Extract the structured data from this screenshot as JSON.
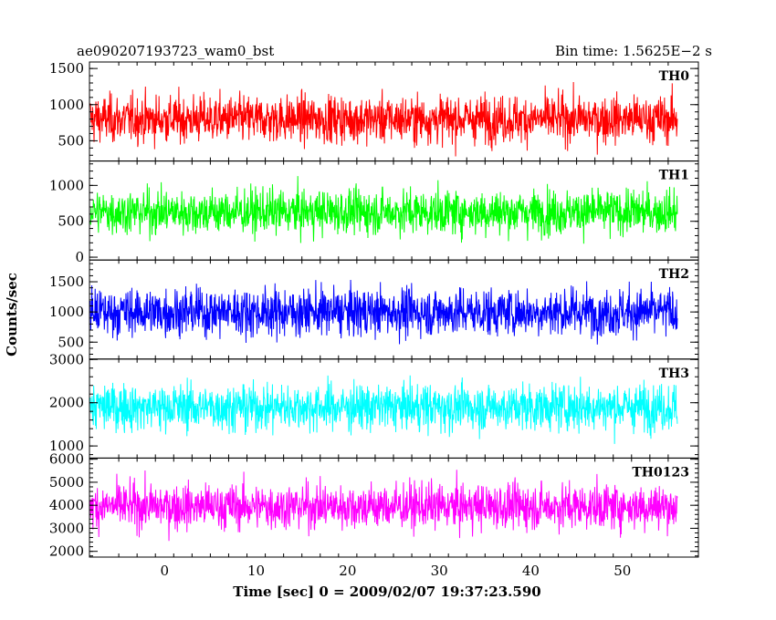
{
  "chart_data": {
    "type": "line",
    "title_left": "ae090207193723_wam0_bst",
    "title_right": "Bin time: 1.5625E−2 s",
    "xlabel": "Time [sec] 0 = 2009/02/07 19:37:23.590",
    "ylabel": "Counts/sec",
    "xlim": [
      -8.2,
      58.3
    ],
    "x_tick_labels": [
      "0",
      "10",
      "20",
      "30",
      "40",
      "50"
    ],
    "x_ticks": [
      0,
      10,
      20,
      30,
      40,
      50
    ],
    "data_x_range": [
      -8.1,
      56.0
    ],
    "grid": false,
    "panels": [
      {
        "name": "TH0",
        "color": "#ff0000",
        "ylim": [
          220,
          1590
        ],
        "y_ticks": [
          500,
          1000,
          1500
        ],
        "y_tick_labels": [
          "500",
          "1000",
          "1500"
        ],
        "y_minor_step": 100,
        "data_range": [
          70,
          1640
        ],
        "mean": 800,
        "spread": 230
      },
      {
        "name": "TH1",
        "color": "#00ff00",
        "ylim": [
          -40,
          1340
        ],
        "y_ticks": [
          0,
          500,
          1000
        ],
        "y_tick_labels": [
          "0",
          "500",
          "1000"
        ],
        "y_minor_step": 100,
        "data_range": [
          10,
          1420
        ],
        "mean": 630,
        "spread": 220
      },
      {
        "name": "TH2",
        "color": "#0000ff",
        "ylim": [
          220,
          1860
        ],
        "y_ticks": [
          500,
          1000,
          1500
        ],
        "y_tick_labels": [
          "500",
          "1000",
          "1500"
        ],
        "y_minor_step": 100,
        "data_range": [
          200,
          1880
        ],
        "mean": 1000,
        "spread": 280
      },
      {
        "name": "TH3",
        "color": "#00ffff",
        "ylim": [
          720,
          3010
        ],
        "y_ticks": [
          1000,
          2000,
          3000
        ],
        "y_tick_labels": [
          "1000",
          "2000",
          "3000"
        ],
        "y_minor_step": 200,
        "data_range": [
          520,
          3100
        ],
        "mean": 1900,
        "spread": 380
      },
      {
        "name": "TH0123",
        "color": "#ff00ff",
        "ylim": [
          1750,
          6050
        ],
        "y_ticks": [
          2000,
          3000,
          4000,
          5000,
          6000
        ],
        "y_tick_labels": [
          "2000",
          "3000",
          "4000",
          "5000",
          "6000"
        ],
        "y_minor_step": 200,
        "data_range": [
          1400,
          6150
        ],
        "mean": 3950,
        "spread": 700
      }
    ]
  }
}
